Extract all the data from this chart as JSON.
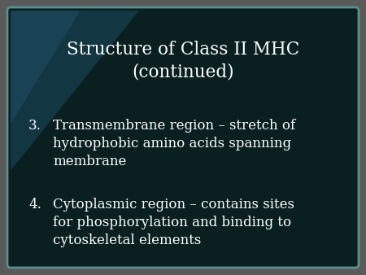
{
  "title_line1": "Structure of Class II MHC",
  "title_line2": "(continued)",
  "item3_number": "3.",
  "item3_text": "Transmembrane region – stretch of\nhydrophobic amino acids spanning\nmembrane",
  "item4_number": "4.",
  "item4_text": "Cytoplasmic region – contains sites\nfor phosphorylation and binding to\ncytoskeletal elements",
  "bg_outer": "#5a5a5a",
  "bg_slide": "#0a2020",
  "border_color": "#5a9090",
  "text_color": "#ffffff",
  "title_fontsize": 15.5,
  "body_fontsize": 12.0,
  "overlay_color": "#1a4a60",
  "overlay_alpha": 0.55
}
